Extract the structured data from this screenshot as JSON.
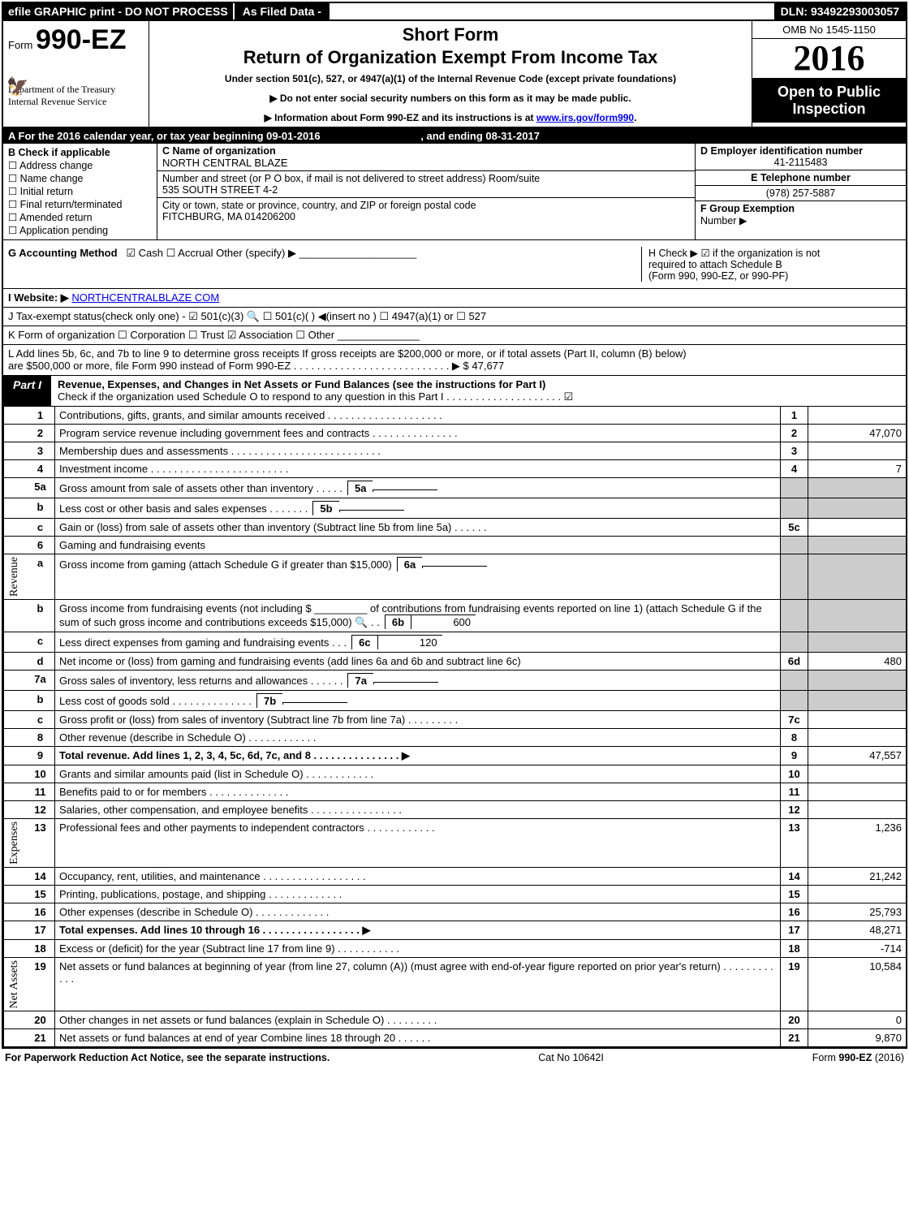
{
  "topbar": {
    "left": "efile GRAPHIC print - DO NOT PROCESS",
    "mid": "As Filed Data -",
    "right": "DLN: 93492293003057"
  },
  "header": {
    "form_prefix": "Form",
    "form_no": "990-EZ",
    "short_form": "Short Form",
    "title": "Return of Organization Exempt From Income Tax",
    "under": "Under section 501(c), 527, or 4947(a)(1) of the Internal Revenue Code (except private foundations)",
    "arrow1": "▶ Do not enter social security numbers on this form as it may be made public.",
    "arrow2_pre": "▶ Information about Form 990-EZ and its instructions is at ",
    "arrow2_link": "www.irs.gov/form990",
    "dept1": "Department of the Treasury",
    "dept2": "Internal Revenue Service",
    "omb": "OMB No 1545-1150",
    "year": "2016",
    "open1": "Open to Public",
    "open2": "Inspection"
  },
  "rowA": {
    "text_pre": "A  For the 2016 calendar year, or tax year beginning 09-01-2016",
    "text_end": ", and ending 08-31-2017"
  },
  "B": {
    "label": "B  Check if applicable",
    "opts": [
      "☐ Address change",
      "☐ Name change",
      "☐ Initial return",
      "☐ Final return/terminated",
      "☐ Amended return",
      "☐ Application pending"
    ]
  },
  "C": {
    "label": "C Name of organization",
    "name": "NORTH CENTRAL BLAZE",
    "addr_label": "Number and street (or P O box, if mail is not delivered to street address)  Room/suite",
    "addr": "535 SOUTH STREET 4-2",
    "city_label": "City or town, state or province, country, and ZIP or foreign postal code",
    "city": "FITCHBURG, MA 014206200"
  },
  "D": {
    "label": "D Employer identification number",
    "value": "41-2115483"
  },
  "E": {
    "label": "E Telephone number",
    "value": "(978) 257-5887"
  },
  "F": {
    "label": "F Group Exemption",
    "label2": "Number    ▶"
  },
  "G": {
    "label": "G Accounting Method",
    "opts": "☑ Cash   ☐ Accrual   Other (specify) ▶ ____________________"
  },
  "H": {
    "text1": "H    Check ▶   ☑  if the organization is not",
    "text2": "required to attach Schedule B",
    "text3": "(Form 990, 990-EZ, or 990-PF)"
  },
  "I": {
    "label": "I Website: ▶",
    "link": "NORTHCENTRALBLAZE COM"
  },
  "J": {
    "text": "J Tax-exempt status(check only one) - ☑ 501(c)(3) 🔍 ☐ 501(c)( ) ◀(insert no ) ☐ 4947(a)(1) or ☐ 527"
  },
  "K": {
    "text": "K Form of organization     ☐ Corporation   ☐ Trust   ☑ Association   ☐ Other ______________"
  },
  "L": {
    "text1": "L Add lines 5b, 6c, and 7b to line 9 to determine gross receipts  If gross receipts are $200,000 or more, or if total assets (Part II, column (B) below)",
    "text2": "are $500,000 or more, file Form 990 instead of Form 990-EZ  .  .  .  .  .  .  .  .  .  .  .  .  .  .  .  .  .  .  .  .  .  .  .  .  .  .  .   ▶ $ 47,677"
  },
  "partI": {
    "label": "Part I",
    "title": "Revenue, Expenses, and Changes in Net Assets or Fund Balances (see the instructions for Part I)",
    "check": "Check if the organization used Schedule O to respond to any question in this Part I .  .  .  .  .  .  .  .  .  .  .  .  .  .  .  .  .  .  .  .   ☑"
  },
  "sides": {
    "rev": "Revenue",
    "exp": "Expenses",
    "net": "Net Assets"
  },
  "lines": {
    "l1": {
      "n": "1",
      "d": "Contributions, gifts, grants, and similar amounts received  .  .  .  .  .  .  .  .  .  .  .  .  .  .  .  .  .  .  .  .",
      "b": "1",
      "v": ""
    },
    "l2": {
      "n": "2",
      "d": "Program service revenue including government fees and contracts  .  .  .  .  .  .  .  .  .  .  .  .  .  .  .",
      "b": "2",
      "v": "47,070"
    },
    "l3": {
      "n": "3",
      "d": "Membership dues and assessments  .  .  .  .  .  .  .  .  .  .  .  .  .  .  .  .  .  .  .  .  .  .  .  .  .  .",
      "b": "3",
      "v": ""
    },
    "l4": {
      "n": "4",
      "d": "Investment income  .  .  .  .  .  .  .  .  .  .  .  .  .  .  .  .  .  .  .  .  .  .  .  .",
      "b": "4",
      "v": "7"
    },
    "l5a": {
      "n": "5a",
      "d": "Gross amount from sale of assets other than inventory  .  .  .  .  .",
      "sb": "5a",
      "sv": ""
    },
    "l5b": {
      "n": "b",
      "d": "Less  cost or other basis and sales expenses  .  .  .  .  .  .  .",
      "sb": "5b",
      "sv": ""
    },
    "l5c": {
      "n": "c",
      "d": "Gain or (loss) from sale of assets other than inventory (Subtract line 5b from line 5a) .  .  .  .  .  .",
      "b": "5c",
      "v": ""
    },
    "l6": {
      "n": "6",
      "d": "Gaming and fundraising events"
    },
    "l6a": {
      "n": "a",
      "d": "Gross income from gaming (attach Schedule G if greater than $15,000)",
      "sb": "6a",
      "sv": ""
    },
    "l6b": {
      "n": "b",
      "d": "Gross income from fundraising events (not including $ _________ of contributions from fundraising events reported on line 1) (attach Schedule G if the sum of such gross income and contributions exceeds $15,000) 🔍 .  .",
      "sb": "6b",
      "sv": "600"
    },
    "l6c": {
      "n": "c",
      "d": "Less  direct expenses from gaming and fundraising events        .  .  .",
      "sb": "6c",
      "sv": "120"
    },
    "l6d": {
      "n": "d",
      "d": "Net income or (loss) from gaming and fundraising events (add lines 6a and 6b and subtract line 6c)",
      "b": "6d",
      "v": "480"
    },
    "l7a": {
      "n": "7a",
      "d": "Gross sales of inventory, less returns and allowances  .  .  .  .  .  .",
      "sb": "7a",
      "sv": ""
    },
    "l7b": {
      "n": "b",
      "d": "Less  cost of goods sold             .  .  .  .  .  .  .  .  .  .  .  .  .  .",
      "sb": "7b",
      "sv": ""
    },
    "l7c": {
      "n": "c",
      "d": "Gross profit or (loss) from sales of inventory (Subtract line 7b from line 7a) .  .  .  .  .  .  .  .  .",
      "b": "7c",
      "v": ""
    },
    "l8": {
      "n": "8",
      "d": "Other revenue (describe in Schedule O)                                      .  .  .  .  .  .  .  .  .  .  .  .",
      "b": "8",
      "v": ""
    },
    "l9": {
      "n": "9",
      "d": "Total revenue. Add lines 1, 2, 3, 4, 5c, 6d, 7c, and 8  .  .  .  .  .  .  .  .  .  .  .  .  .  .  .    ▶",
      "b": "9",
      "v": "47,557",
      "bold": true
    },
    "l10": {
      "n": "10",
      "d": "Grants and similar amounts paid (list in Schedule O)              .  .  .  .  .  .  .  .  .  .  .  .",
      "b": "10",
      "v": ""
    },
    "l11": {
      "n": "11",
      "d": "Benefits paid to or for members                               .  .  .  .  .  .  .  .  .  .  .  .  .  .",
      "b": "11",
      "v": ""
    },
    "l12": {
      "n": "12",
      "d": "Salaries, other compensation, and employee benefits  .  .  .  .  .  .  .  .  .  .  .  .  .  .  .  .",
      "b": "12",
      "v": ""
    },
    "l13": {
      "n": "13",
      "d": "Professional fees and other payments to independent contractors  .  .  .  .  .  .  .  .  .  .  .  .",
      "b": "13",
      "v": "1,236"
    },
    "l14": {
      "n": "14",
      "d": "Occupancy, rent, utilities, and maintenance  .  .  .  .  .  .  .  .  .  .  .  .  .  .  .  .  .  .",
      "b": "14",
      "v": "21,242"
    },
    "l15": {
      "n": "15",
      "d": "Printing, publications, postage, and shipping                   .  .  .  .  .  .  .  .  .  .  .  .  .",
      "b": "15",
      "v": ""
    },
    "l16": {
      "n": "16",
      "d": "Other expenses (describe in Schedule O)                        .  .  .  .  .  .  .  .  .  .  .  .  .",
      "b": "16",
      "v": "25,793"
    },
    "l17": {
      "n": "17",
      "d": "Total expenses. Add lines 10 through 16         .  .  .  .  .  .  .  .  .  .  .  .  .  .  .  .  .    ▶",
      "b": "17",
      "v": "48,271",
      "bold": true
    },
    "l18": {
      "n": "18",
      "d": "Excess or (deficit) for the year (Subtract line 17 from line 9)        .  .  .  .  .  .  .  .  .  .  .",
      "b": "18",
      "v": "-714"
    },
    "l19": {
      "n": "19",
      "d": "Net assets or fund balances at beginning of year (from line 27, column (A)) (must agree with end-of-year figure reported on prior year's return)                           .  .  .  .  .  .  .  .  .  .  .  .",
      "b": "19",
      "v": "10,584"
    },
    "l20": {
      "n": "20",
      "d": "Other changes in net assets or fund balances (explain in Schedule O)     .  .  .  .  .  .  .  .  .",
      "b": "20",
      "v": "0"
    },
    "l21": {
      "n": "21",
      "d": "Net assets or fund balances at end of year  Combine lines 18 through 20          .  .  .  .  .  .",
      "b": "21",
      "v": "9,870"
    }
  },
  "footer": {
    "left": "For Paperwork Reduction Act Notice, see the separate instructions.",
    "mid": "Cat No  10642I",
    "right": "Form 990-EZ (2016)"
  }
}
